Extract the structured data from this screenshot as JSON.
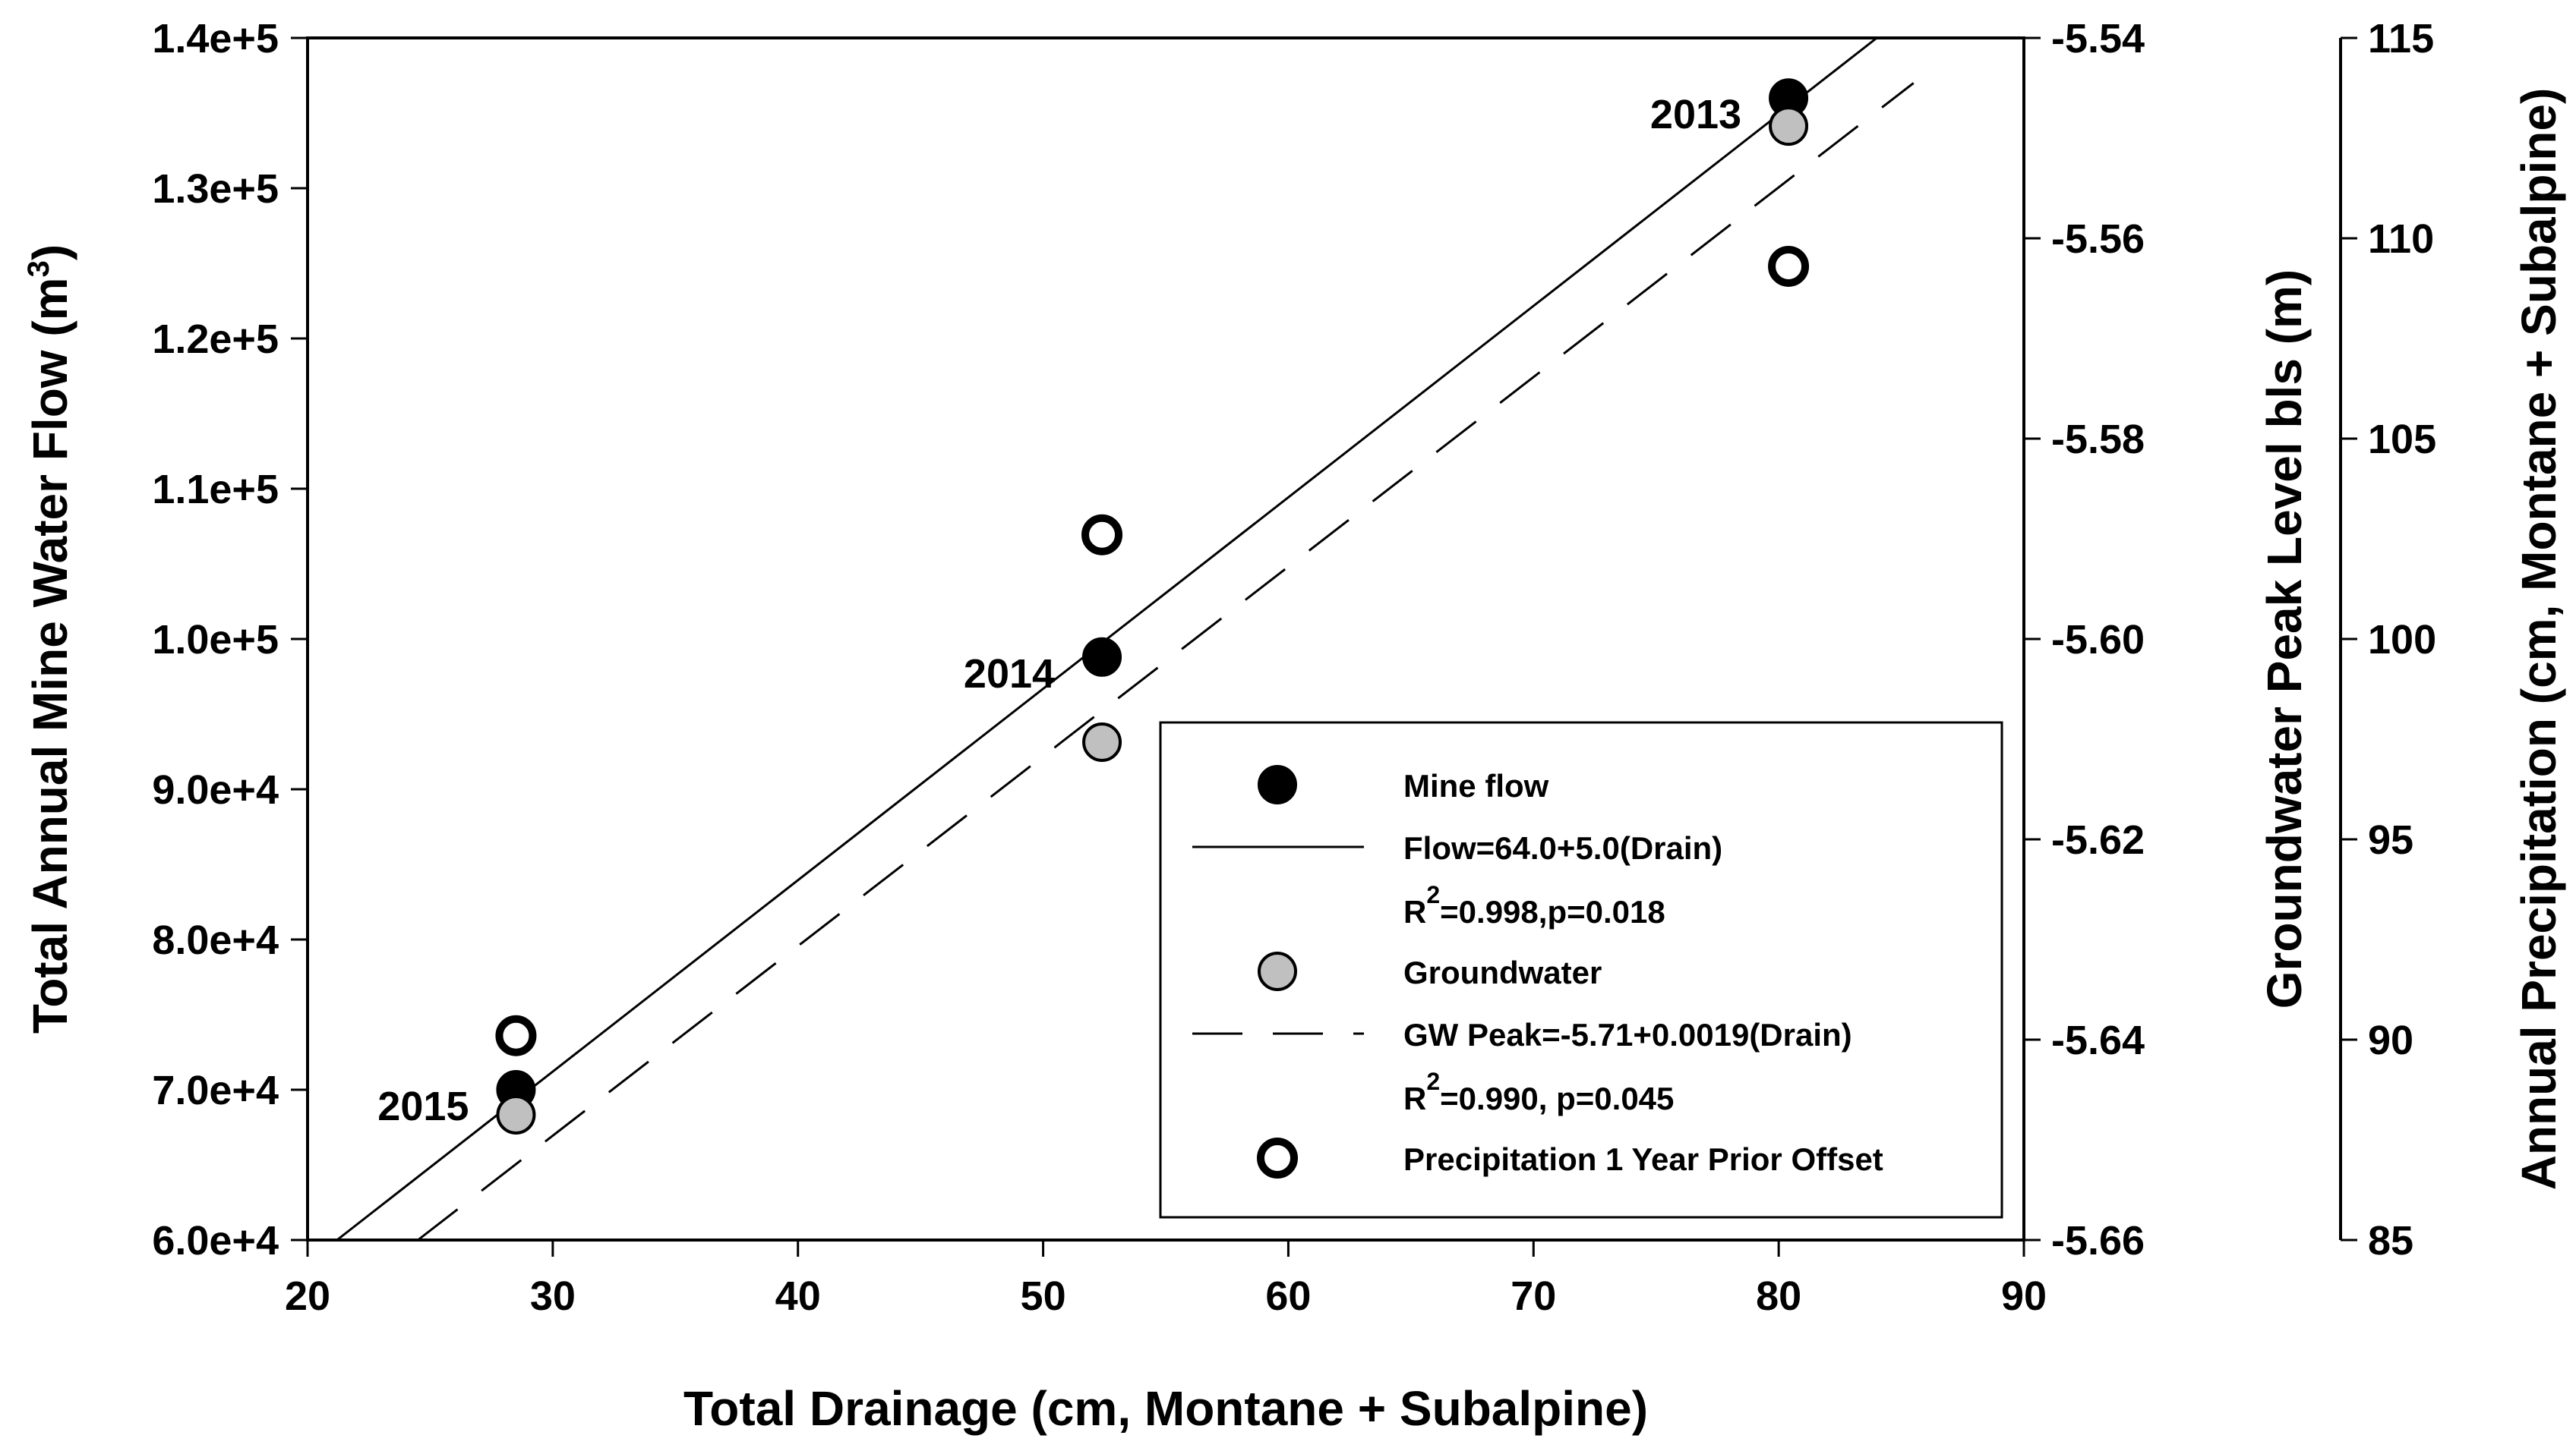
{
  "chart_data": {
    "type": "scatter",
    "xlabel": "Total Drainage (cm, Montane + Subalpine)",
    "ylabel": "Total Annual Mine Water Flow (m3)",
    "ylabel_main": "Total Annual Mine Water Flow (m",
    "ylabel_sup": "3",
    "ylabel_close": ")",
    "y2label": "Groundwater Peak Level bls (m)",
    "y3label": "Annual Precipitation (cm, Montane + Subalpine)",
    "xlim": [
      20,
      90
    ],
    "ylim": [
      60000,
      140000
    ],
    "y2lim": [
      -5.66,
      -5.54
    ],
    "y3lim": [
      85,
      115
    ],
    "x_ticks": [
      20,
      30,
      40,
      50,
      60,
      70,
      80,
      90
    ],
    "x_tick_labels": [
      "20",
      "30",
      "40",
      "50",
      "60",
      "70",
      "80",
      "90"
    ],
    "y_ticks": [
      60000,
      70000,
      80000,
      90000,
      100000,
      110000,
      120000,
      130000,
      140000
    ],
    "y_tick_labels": [
      "6.0e+4",
      "7.0e+4",
      "8.0e+4",
      "9.0e+4",
      "1.0e+5",
      "1.1e+5",
      "1.2e+5",
      "1.3e+5",
      "1.4e+5"
    ],
    "y2_ticks": [
      -5.66,
      -5.64,
      -5.62,
      -5.6,
      -5.58,
      -5.56,
      -5.54
    ],
    "y2_tick_labels": [
      "-5.66",
      "-5.64",
      "-5.62",
      "-5.60",
      "-5.58",
      "-5.56",
      "-5.54"
    ],
    "y3_ticks": [
      85,
      90,
      95,
      100,
      105,
      110,
      115
    ],
    "y3_tick_labels": [
      "85",
      "90",
      "95",
      "100",
      "105",
      "110",
      "115"
    ],
    "series": [
      {
        "name": "Mine flow",
        "axis": "y",
        "marker": "filled-black",
        "x": [
          28.5,
          52.4,
          80.4
        ],
        "y": [
          70000,
          98800,
          136000
        ]
      },
      {
        "name": "Groundwater",
        "axis": "y2",
        "marker": "filled-gray",
        "x": [
          28.5,
          52.4,
          80.4
        ],
        "y": [
          -5.6475,
          -5.6103,
          -5.5488
        ]
      },
      {
        "name": "Precipitation 1 Year Prior Offset",
        "axis": "y3",
        "marker": "open-ring",
        "x": [
          28.5,
          52.4,
          80.4
        ],
        "y": [
          90.1,
          102.6,
          109.3
        ]
      }
    ],
    "fit_lines": [
      {
        "name": "Flow=64.0+5.0(Drain)",
        "style": "solid",
        "axis": "y",
        "x": [
          21.2,
          84.0
        ],
        "y": [
          60000,
          140000
        ]
      },
      {
        "name": "GW Peak=-5.71+0.0019(Drain)",
        "style": "dashed",
        "axis": "y2",
        "x": [
          24.5,
          85.5
        ],
        "y": [
          -5.66,
          -5.5445
        ]
      }
    ],
    "year_labels": [
      {
        "text": "2015",
        "x": 28.5,
        "y": 70000
      },
      {
        "text": "2014",
        "x": 52.4,
        "y": 98800
      },
      {
        "text": "2013",
        "x": 80.4,
        "y": 136000
      }
    ],
    "legend": {
      "position": "bottom-right",
      "entries": [
        {
          "symbol": "filled-black",
          "text": "Mine flow"
        },
        {
          "symbol": "solid-line",
          "text": "Flow=64.0+5.0(Drain)"
        },
        {
          "symbol": "none",
          "text_prefix": "R",
          "text_sup": "2",
          "text_rest": "=0.998,p=0.018"
        },
        {
          "symbol": "filled-gray",
          "text": "Groundwater"
        },
        {
          "symbol": "dashed-line",
          "text": "GW Peak=-5.71+0.0019(Drain)"
        },
        {
          "symbol": "none",
          "text_prefix": "R",
          "text_sup": "2",
          "text_rest": "=0.990, p=0.045"
        },
        {
          "symbol": "open-ring",
          "text": "Precipitation 1 Year Prior Offset"
        }
      ]
    },
    "colors": {
      "mine_flow": "#000000",
      "groundwater": "#c0c0c0",
      "precip_fill": "#ffffff",
      "stroke": "#000000"
    }
  }
}
